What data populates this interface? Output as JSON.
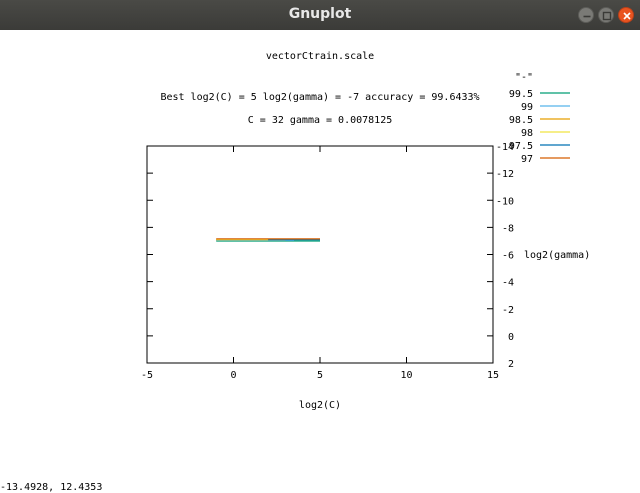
{
  "window": {
    "title": "Gnuplot"
  },
  "chart_data": {
    "type": "line",
    "title": "vectorCtrain.scale",
    "subtitle_1": "Best log2(C) = 5  log2(gamma) = -7  accuracy = 99.6433%",
    "subtitle_2": "C = 32  gamma = 0.0078125",
    "xlabel": "log2(C)",
    "ylabel": "log2(gamma)",
    "xlim": [
      -5,
      15
    ],
    "ylim": [
      2,
      -14
    ],
    "x_ticks": [
      -5,
      0,
      5,
      10,
      15
    ],
    "y_ticks": [
      -14,
      -12,
      -10,
      -8,
      -6,
      -4,
      -2,
      0,
      2
    ],
    "legend_title": "\"-\"",
    "legend_position": "top-right, outside plot",
    "series": [
      {
        "name": "99.5",
        "color": "#009e73",
        "segments": [
          [
            [
              -1,
              -7.0
            ],
            [
              5,
              -7.0
            ]
          ]
        ]
      },
      {
        "name": "99",
        "color": "#56b4e9",
        "segments": [
          [
            [
              -1,
              -7.05
            ],
            [
              3.5,
              -7.05
            ]
          ]
        ]
      },
      {
        "name": "98.5",
        "color": "#e69f00",
        "segments": [
          [
            [
              -1,
              -7.1
            ],
            [
              3,
              -7.1
            ]
          ]
        ]
      },
      {
        "name": "98",
        "color": "#f0e442",
        "segments": [
          [
            [
              -1,
              -7.1
            ],
            [
              3,
              -7.1
            ]
          ]
        ]
      },
      {
        "name": "97.5",
        "color": "#0072b2",
        "segments": [
          [
            [
              2,
              -7.1
            ],
            [
              5,
              -7.1
            ]
          ]
        ]
      },
      {
        "name": "97",
        "color": "#d55e00",
        "segments": [
          [
            [
              -1,
              -7.15
            ],
            [
              5,
              -7.15
            ]
          ]
        ]
      }
    ],
    "grid": false
  },
  "status": {
    "coordinates": "-13.4928,  12.4353"
  }
}
